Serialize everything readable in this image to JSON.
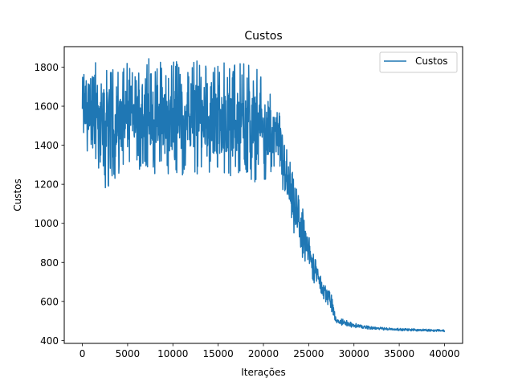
{
  "chart_data": {
    "type": "line",
    "title": "Custos",
    "xlabel": "Iterações",
    "ylabel": "Custos",
    "xlim": [
      -2000,
      42000
    ],
    "ylim": [
      385,
      1905
    ],
    "xticks": [
      0,
      5000,
      10000,
      15000,
      20000,
      25000,
      30000,
      35000,
      40000
    ],
    "yticks": [
      400,
      600,
      800,
      1000,
      1200,
      1400,
      1600,
      1800
    ],
    "grid": false,
    "legend": "top-right",
    "series": [
      {
        "name": "Custos",
        "color": "#1f77b4",
        "envelope": [
          {
            "x": 0,
            "lo": 1370,
            "hi": 1820
          },
          {
            "x": 1000,
            "lo": 1310,
            "hi": 1875
          },
          {
            "x": 2500,
            "lo": 1170,
            "hi": 1790
          },
          {
            "x": 5000,
            "lo": 1300,
            "hi": 1820
          },
          {
            "x": 7000,
            "lo": 1260,
            "hi": 1850
          },
          {
            "x": 10000,
            "lo": 1230,
            "hi": 1830
          },
          {
            "x": 12500,
            "lo": 1250,
            "hi": 1840
          },
          {
            "x": 15000,
            "lo": 1260,
            "hi": 1830
          },
          {
            "x": 17000,
            "lo": 1220,
            "hi": 1840
          },
          {
            "x": 19000,
            "lo": 1190,
            "hi": 1810
          },
          {
            "x": 20500,
            "lo": 1220,
            "hi": 1700
          },
          {
            "x": 21500,
            "lo": 1280,
            "hi": 1620
          },
          {
            "x": 22500,
            "lo": 1050,
            "hi": 1450
          },
          {
            "x": 23500,
            "lo": 900,
            "hi": 1200
          },
          {
            "x": 24500,
            "lo": 800,
            "hi": 1050
          },
          {
            "x": 25500,
            "lo": 700,
            "hi": 850
          },
          {
            "x": 26500,
            "lo": 620,
            "hi": 720
          },
          {
            "x": 27500,
            "lo": 550,
            "hi": 640
          },
          {
            "x": 28000,
            "lo": 480,
            "hi": 520
          },
          {
            "x": 30000,
            "lo": 465,
            "hi": 490
          },
          {
            "x": 32000,
            "lo": 455,
            "hi": 470
          },
          {
            "x": 35000,
            "lo": 450,
            "hi": 462
          },
          {
            "x": 40000,
            "lo": 445,
            "hi": 455
          }
        ]
      }
    ]
  }
}
